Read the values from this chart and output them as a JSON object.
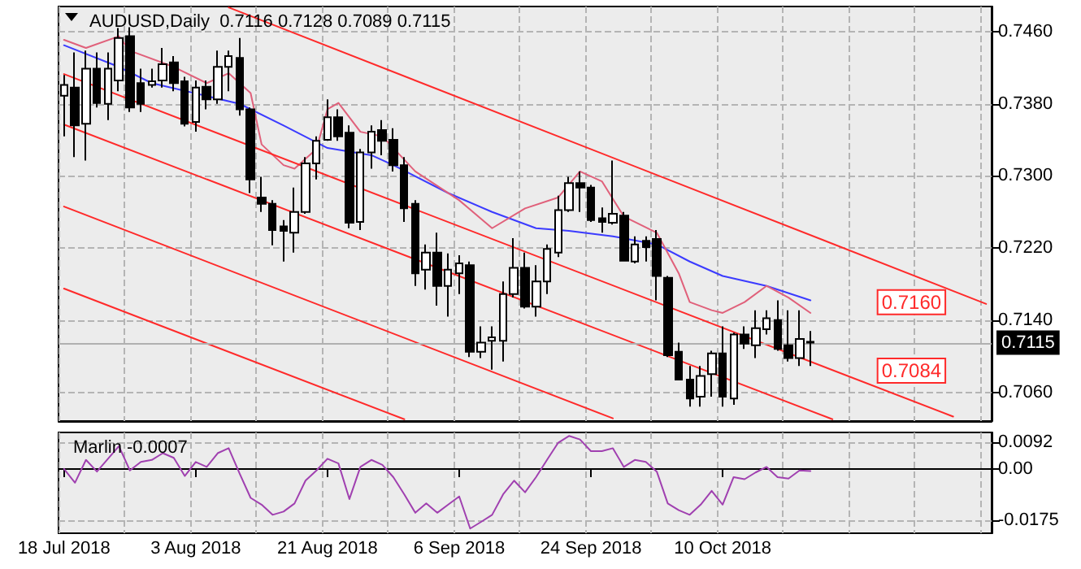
{
  "chart_data": [
    {
      "type": "candlestick",
      "title": "AUDUSD,Daily  0.7116 0.7128 0.7089 0.7115",
      "tick_labels": "y",
      "grid": true,
      "categories": [
        null,
        null,
        null,
        null,
        null,
        null,
        null,
        null,
        null,
        null,
        null,
        null,
        null,
        null,
        null,
        null,
        null,
        null,
        null,
        null,
        null,
        null,
        null,
        null,
        null,
        null,
        null,
        null,
        null,
        null,
        null,
        null,
        null,
        null,
        null,
        null,
        null,
        null,
        null,
        null,
        null,
        null,
        null,
        null,
        null,
        null,
        null,
        null,
        null,
        null,
        null,
        null,
        null,
        null,
        null,
        null,
        null,
        null,
        null,
        null,
        null,
        null,
        null,
        null,
        null,
        null,
        null,
        null,
        null,
        null,
        null,
        null,
        null,
        null,
        null,
        null,
        null,
        null,
        null,
        null,
        null,
        null,
        null,
        null,
        null
      ],
      "ylim": [
        0.7028,
        0.7488
      ],
      "yticks": [
        {
          "value": 0.706,
          "label": "0.7060"
        },
        {
          "value": 0.714,
          "label": "0.7140"
        },
        {
          "value": 0.722,
          "label": "0.7220"
        },
        {
          "value": 0.73,
          "label": "0.7300"
        },
        {
          "value": 0.738,
          "label": "0.7380"
        },
        {
          "value": 0.746,
          "label": "0.7460"
        }
      ],
      "ohlc": [
        [
          0.7389,
          0.7412,
          0.7344,
          0.7401
        ],
        [
          0.7398,
          0.7437,
          0.7321,
          0.7356
        ],
        [
          0.7358,
          0.7439,
          0.7317,
          0.7419
        ],
        [
          0.7419,
          0.7437,
          0.7376,
          0.7381
        ],
        [
          0.738,
          0.7437,
          0.7362,
          0.7419
        ],
        [
          0.7406,
          0.7464,
          0.7394,
          0.7453
        ],
        [
          0.7455,
          0.7465,
          0.7371,
          0.7376
        ],
        [
          0.7403,
          0.7419,
          0.7371,
          0.738
        ],
        [
          0.7401,
          0.7419,
          0.7398,
          0.7405
        ],
        [
          0.7406,
          0.7442,
          0.7398,
          0.7424
        ],
        [
          0.7426,
          0.7433,
          0.7394,
          0.7403
        ],
        [
          0.7405,
          0.741,
          0.7355,
          0.7358
        ],
        [
          0.736,
          0.7406,
          0.7349,
          0.7398
        ],
        [
          0.7399,
          0.7406,
          0.7374,
          0.7385
        ],
        [
          0.7385,
          0.7439,
          0.738,
          0.7421
        ],
        [
          0.7421,
          0.7439,
          0.7394,
          0.7433
        ],
        [
          0.7431,
          0.7453,
          0.7367,
          0.7374
        ],
        [
          0.7374,
          0.7376,
          0.7281,
          0.7296
        ],
        [
          0.7276,
          0.7299,
          0.726,
          0.7269
        ],
        [
          0.7269,
          0.7273,
          0.7223,
          0.724
        ],
        [
          0.7244,
          0.7251,
          0.7205,
          0.7239
        ],
        [
          0.7237,
          0.7287,
          0.7215,
          0.726
        ],
        [
          0.726,
          0.7321,
          0.7258,
          0.7314
        ],
        [
          0.7314,
          0.7344,
          0.7296,
          0.7339
        ],
        [
          0.734,
          0.7385,
          0.7339,
          0.7365
        ],
        [
          0.7365,
          0.7374,
          0.7339,
          0.7344
        ],
        [
          0.7348,
          0.7356,
          0.7242,
          0.7248
        ],
        [
          0.7249,
          0.733,
          0.724,
          0.7326
        ],
        [
          0.7326,
          0.7356,
          0.7308,
          0.7349
        ],
        [
          0.7351,
          0.7362,
          0.7323,
          0.7339
        ],
        [
          0.734,
          0.7353,
          0.7305,
          0.7312
        ],
        [
          0.7312,
          0.7321,
          0.7249,
          0.7264
        ],
        [
          0.7269,
          0.7273,
          0.7178,
          0.7192
        ],
        [
          0.7196,
          0.7224,
          0.7174,
          0.7215
        ],
        [
          0.7215,
          0.7237,
          0.7156,
          0.7178
        ],
        [
          0.7178,
          0.7214,
          0.7144,
          0.7196
        ],
        [
          0.7192,
          0.7212,
          0.7169,
          0.7203
        ],
        [
          0.7201,
          0.7205,
          0.7099,
          0.7105
        ],
        [
          0.7105,
          0.7133,
          0.7098,
          0.7115
        ],
        [
          0.7117,
          0.7133,
          0.7085,
          0.7121
        ],
        [
          0.7117,
          0.7183,
          0.7094,
          0.7169
        ],
        [
          0.7169,
          0.7231,
          0.7165,
          0.7198
        ],
        [
          0.7198,
          0.7215,
          0.7153,
          0.7155
        ],
        [
          0.7155,
          0.7201,
          0.7144,
          0.7183
        ],
        [
          0.7183,
          0.7224,
          0.7169,
          0.7219
        ],
        [
          0.7215,
          0.7278,
          0.721,
          0.7262
        ],
        [
          0.7262,
          0.7299,
          0.726,
          0.7292
        ],
        [
          0.7292,
          0.7305,
          0.726,
          0.7287
        ],
        [
          0.7287,
          0.729,
          0.7249,
          0.7251
        ],
        [
          0.7253,
          0.7265,
          0.7237,
          0.7249
        ],
        [
          0.7248,
          0.7317,
          0.7246,
          0.7258
        ],
        [
          0.7256,
          0.726,
          0.7206,
          0.7206
        ],
        [
          0.7205,
          0.7233,
          0.7203,
          0.7224
        ],
        [
          0.7228,
          0.7233,
          0.7205,
          0.7221
        ],
        [
          0.723,
          0.724,
          0.7162,
          0.7189
        ],
        [
          0.7187,
          0.7189,
          0.7099,
          0.7101
        ],
        [
          0.7105,
          0.7115,
          0.7073,
          0.7074
        ],
        [
          0.7074,
          0.7089,
          0.7044,
          0.7053
        ],
        [
          0.7055,
          0.7089,
          0.7044,
          0.7078
        ],
        [
          0.708,
          0.7106,
          0.7055,
          0.7103
        ],
        [
          0.7103,
          0.7133,
          0.7044,
          0.7055
        ],
        [
          0.7053,
          0.7126,
          0.7046,
          0.7124
        ],
        [
          0.7124,
          0.7133,
          0.7108,
          0.7114
        ],
        [
          0.7112,
          0.7151,
          0.7098,
          0.7131
        ],
        [
          0.713,
          0.7151,
          0.7124,
          0.7142
        ],
        [
          0.714,
          0.7162,
          0.7106,
          0.7108
        ],
        [
          0.7112,
          0.7151,
          0.7094,
          0.7098
        ],
        [
          0.7098,
          0.7151,
          0.7089,
          0.7119
        ],
        [
          0.7116,
          0.7128,
          0.7089,
          0.7115
        ],
        null,
        null,
        null,
        null,
        null,
        null,
        null,
        null,
        null,
        null,
        null,
        null,
        null,
        null,
        null,
        null
      ],
      "series": [
        {
          "type": "line",
          "color": "#3b3bff",
          "values": [
            0.7445,
            null,
            null,
            null,
            null,
            0.7421,
            null,
            null,
            0.7403,
            null,
            null,
            null,
            null,
            null,
            null,
            null,
            0.738,
            null,
            null,
            null,
            0.7356,
            null,
            null,
            null,
            0.7331,
            null,
            null,
            null,
            0.7323,
            null,
            0.7312,
            null,
            null,
            null,
            null,
            0.7281,
            null,
            null,
            null,
            0.726,
            null,
            null,
            null,
            0.7242,
            null,
            null,
            0.7239,
            null,
            null,
            null,
            0.7233,
            null,
            null,
            null,
            0.7224,
            null,
            null,
            0.7205,
            null,
            null,
            0.7189,
            null,
            null,
            null,
            0.7178,
            null,
            null,
            null,
            0.7162,
            null,
            null,
            null,
            null,
            null,
            null,
            null,
            null,
            null,
            null,
            null,
            null,
            null,
            null,
            null,
            null
          ]
        },
        {
          "type": "line",
          "color": "#e0607a",
          "values": [
            0.7451,
            null,
            0.7442,
            null,
            null,
            0.7455,
            0.7439,
            null,
            null,
            null,
            0.7421,
            null,
            null,
            0.7403,
            null,
            0.7414,
            null,
            0.7392,
            0.7335,
            null,
            0.7312,
            0.7308,
            null,
            0.733,
            0.7374,
            0.7381,
            null,
            0.7349,
            null,
            0.7344,
            null,
            null,
            0.7305,
            null,
            null,
            null,
            0.7273,
            null,
            null,
            0.7242,
            null,
            null,
            0.7264,
            null,
            null,
            0.7276,
            null,
            0.7305,
            null,
            0.7294,
            null,
            0.7255,
            null,
            null,
            0.7237,
            null,
            0.7192,
            0.716,
            null,
            0.7151,
            0.7148,
            null,
            0.716,
            null,
            0.7178,
            null,
            0.7165,
            null,
            0.7148,
            null,
            null,
            null,
            null,
            null,
            null,
            null,
            null,
            null,
            null,
            null,
            null,
            null,
            null,
            null,
            null
          ]
        },
        {
          "type": "line",
          "color": "#ff2a2a",
          "values": [
            null,
            null,
            null,
            null,
            null,
            null,
            null,
            null,
            null,
            null,
            null,
            null,
            null,
            null,
            null,
            0.7487,
            null,
            null,
            null,
            null,
            null,
            null,
            null,
            null,
            null,
            null,
            null,
            null,
            null,
            null,
            null,
            null,
            null,
            null,
            null,
            null,
            null,
            null,
            null,
            null,
            null,
            null,
            null,
            null,
            null,
            null,
            null,
            null,
            null,
            null,
            null,
            null,
            null,
            null,
            null,
            null,
            null,
            null,
            null,
            null,
            null,
            null,
            null,
            null,
            null,
            null,
            null,
            null,
            null,
            null,
            null,
            null,
            null,
            null,
            null,
            null,
            null,
            null,
            null,
            null,
            null,
            null,
            null,
            null,
            0.7158
          ]
        },
        {
          "type": "line",
          "color": "#ff2a2a",
          "values": [
            0.7413,
            null,
            null,
            null,
            null,
            null,
            null,
            null,
            null,
            null,
            null,
            null,
            null,
            null,
            null,
            null,
            null,
            null,
            null,
            null,
            null,
            null,
            null,
            null,
            null,
            null,
            null,
            null,
            null,
            null,
            null,
            null,
            null,
            null,
            null,
            null,
            null,
            null,
            null,
            null,
            null,
            null,
            null,
            null,
            null,
            null,
            null,
            null,
            null,
            null,
            null,
            null,
            null,
            null,
            null,
            null,
            null,
            null,
            null,
            null,
            null,
            null,
            null,
            null,
            null,
            null,
            null,
            null,
            null,
            null,
            null,
            null,
            null,
            null,
            null,
            null,
            null,
            null,
            null,
            null,
            null,
            0.7033,
            null,
            null,
            null
          ]
        },
        {
          "type": "line",
          "color": "#ff2a2a",
          "values": [
            0.7357,
            null,
            null,
            null,
            null,
            null,
            null,
            null,
            null,
            null,
            null,
            null,
            null,
            null,
            null,
            null,
            null,
            null,
            null,
            null,
            null,
            null,
            null,
            null,
            null,
            null,
            null,
            null,
            null,
            null,
            null,
            null,
            null,
            null,
            null,
            null,
            null,
            null,
            null,
            null,
            null,
            null,
            null,
            null,
            null,
            null,
            null,
            null,
            null,
            null,
            null,
            null,
            null,
            null,
            null,
            null,
            null,
            null,
            null,
            null,
            null,
            null,
            null,
            null,
            null,
            null,
            null,
            null,
            null,
            null,
            0.703,
            null,
            null,
            null,
            null,
            null,
            null,
            null,
            null,
            null,
            null,
            null,
            null,
            null,
            null
          ]
        },
        {
          "type": "line",
          "color": "#ff2a2a",
          "values": [
            0.7266,
            null,
            null,
            null,
            null,
            null,
            null,
            null,
            null,
            null,
            null,
            null,
            null,
            null,
            null,
            null,
            null,
            null,
            null,
            null,
            null,
            null,
            null,
            null,
            null,
            null,
            null,
            null,
            null,
            null,
            null,
            null,
            null,
            null,
            null,
            null,
            null,
            null,
            null,
            null,
            null,
            null,
            null,
            null,
            null,
            null,
            null,
            null,
            null,
            null,
            0.7031,
            null,
            null,
            null,
            null,
            null,
            null,
            null,
            null,
            null,
            null,
            null,
            null,
            null,
            null,
            null,
            null,
            null,
            null,
            null,
            null,
            null,
            null,
            null,
            null,
            null,
            null,
            null,
            null,
            null,
            null,
            null,
            null,
            null,
            null
          ]
        },
        {
          "type": "line",
          "color": "#ff2a2a",
          "values": [
            0.7175,
            null,
            null,
            null,
            null,
            null,
            null,
            null,
            null,
            null,
            null,
            null,
            null,
            null,
            null,
            null,
            null,
            null,
            null,
            null,
            null,
            null,
            null,
            null,
            null,
            null,
            null,
            null,
            null,
            null,
            null,
            0.703,
            null,
            null,
            null,
            null,
            null,
            null,
            null,
            null,
            null,
            null,
            null,
            null,
            null,
            null,
            null,
            null,
            null,
            null,
            null,
            null,
            null,
            null,
            null,
            null,
            null,
            null,
            null,
            null,
            null,
            null,
            null,
            null,
            null,
            null,
            null,
            null,
            null,
            null,
            null,
            null,
            null,
            null,
            null,
            null,
            null,
            null,
            null,
            null,
            null,
            null,
            null,
            null,
            null
          ]
        }
      ],
      "ref_lines": [
        {
          "axis": "y",
          "value": 0.7115,
          "label": "0.7115",
          "color": "#b0b0b0"
        }
      ],
      "annotations": [
        {
          "text": "0.7160",
          "y": 0.716
        },
        {
          "text": "0.7084",
          "y": 0.7084
        }
      ]
    },
    {
      "type": "line",
      "title": "Marlin -0.0007",
      "grid": true,
      "categories": [
        "18 Jul 2018",
        null,
        null,
        null,
        null,
        null,
        null,
        null,
        null,
        null,
        null,
        null,
        "3 Aug 2018",
        null,
        null,
        null,
        null,
        null,
        null,
        null,
        null,
        null,
        null,
        null,
        "21 Aug 2018",
        null,
        null,
        null,
        null,
        null,
        null,
        null,
        null,
        null,
        null,
        null,
        "6 Sep 2018",
        null,
        null,
        null,
        null,
        null,
        null,
        null,
        null,
        null,
        null,
        null,
        "24 Sep 2018",
        null,
        null,
        null,
        null,
        null,
        null,
        null,
        null,
        null,
        null,
        null,
        "10 Oct 2018",
        null,
        null,
        null,
        null,
        null,
        null,
        null,
        null,
        null,
        null,
        null,
        null,
        null,
        null,
        null,
        null,
        null,
        null,
        null,
        null,
        null,
        null,
        null,
        null
      ],
      "ylim": [
        -0.022,
        0.0125
      ],
      "yticks": [
        -0.0175,
        {
          "value": 0,
          "label": "0.00"
        },
        0.0092
      ],
      "series": [
        {
          "color": "#a040b0",
          "values": [
            0,
            -0.0047,
            0.0031,
            -0.0009,
            null,
            0.0078,
            -0.0005,
            0.0024,
            0.0031,
            0.0054,
            0.0038,
            -0.0024,
            0.0024,
            0.0007,
            0.0054,
            0.0071,
            -0.0016,
            -0.0099,
            -0.0122,
            -0.0157,
            -0.0146,
            -0.0118,
            -0.004,
            -0.0005,
            0.0035,
            0.0019,
            -0.0103,
            0.0007,
            0.0031,
            0.0014,
            -0.0028,
            -0.0087,
            -0.015,
            -0.0118,
            -0.015,
            -0.0122,
            -0.0094,
            -0.0204,
            -0.0181,
            -0.0157,
            -0.0087,
            -0.004,
            -0.008,
            -0.0028,
            0.0031,
            0.0089,
            0.0113,
            0.0101,
            0.0061,
            0.0061,
            0.0071,
            0.0007,
            0.0031,
            0.0024,
            -0.0009,
            -0.0118,
            -0.0141,
            -0.0157,
            -0.0122,
            -0.0075,
            -0.0122,
            -0.0028,
            -0.0035,
            -0.0012,
            0.0007,
            -0.0028,
            -0.0033,
            -0.0005,
            -0.0007,
            null,
            null,
            null,
            null,
            null,
            null,
            null,
            null,
            null,
            null,
            null,
            null,
            null,
            null,
            null,
            null
          ]
        }
      ]
    }
  ]
}
